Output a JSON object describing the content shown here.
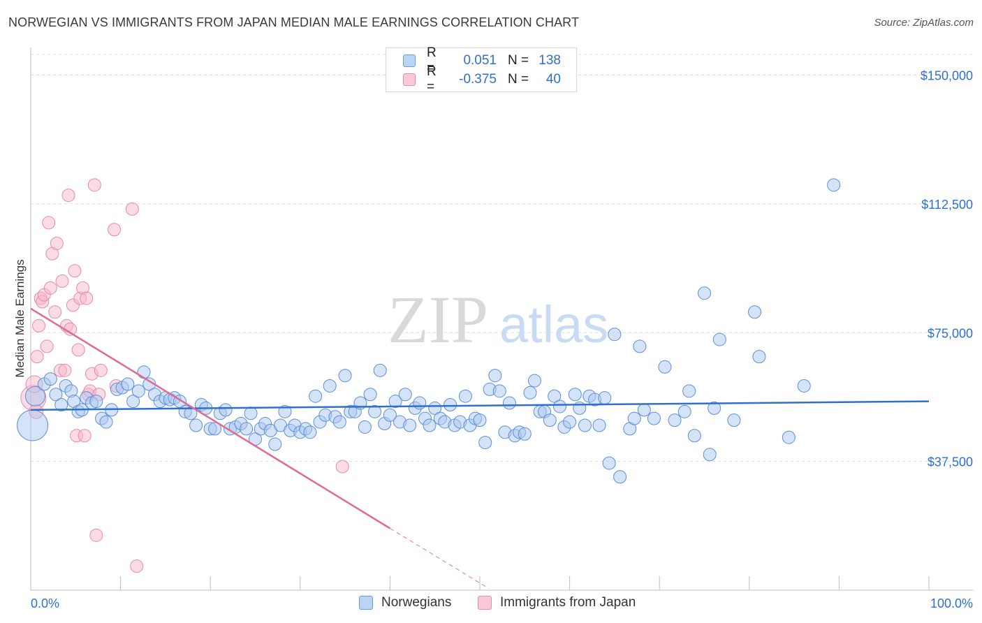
{
  "title": "NORWEGIAN VS IMMIGRANTS FROM JAPAN MEDIAN MALE EARNINGS CORRELATION CHART",
  "source": "Source: ZipAtlas.com",
  "watermark": {
    "zip": "ZIP",
    "atlas": "atlas"
  },
  "legend": {
    "rows": [
      {
        "r_label": "R =",
        "r_value": "0.051",
        "n_label": "N =",
        "n_value": "138",
        "color": "#a9c8f0",
        "border": "#6a9be0"
      },
      {
        "r_label": "R =",
        "r_value": "-0.375",
        "n_label": "N =",
        "n_value": "40",
        "color": "#f7b8cb",
        "border": "#e88aa8"
      }
    ]
  },
  "bottom_legend": {
    "series1": "Norwegians",
    "series2": "Immigrants from Japan"
  },
  "chart_data": {
    "type": "scatter",
    "ylabel": "Median Male Earnings",
    "x_tick_labels": [
      "0.0%",
      "100.0%"
    ],
    "xlim": [
      0,
      100
    ],
    "ylim": [
      0,
      156000
    ],
    "y_ticks": [
      37500,
      75000,
      112500,
      150000
    ],
    "y_tick_labels": [
      "$37,500",
      "$75,000",
      "$112,500",
      "$150,000"
    ],
    "grid": true,
    "colors": {
      "norwegians": "#5b8fd8",
      "japan": "#e5789b",
      "tick_label": "#2f6fd0"
    },
    "series": [
      {
        "name": "Norwegians",
        "trend": {
          "x0": 0,
          "y0": 52500,
          "x1": 100,
          "y1": 55000
        },
        "points": [
          [
            0.2,
            48000,
            22
          ],
          [
            0.5,
            56500,
            14
          ],
          [
            1.5,
            60000,
            9
          ],
          [
            2.2,
            61500,
            9
          ],
          [
            2.8,
            57000,
            9
          ],
          [
            3.4,
            54000,
            9
          ],
          [
            3.9,
            59500,
            9
          ],
          [
            4.5,
            58000,
            9
          ],
          [
            4.8,
            55000,
            9
          ],
          [
            5.3,
            52000,
            9
          ],
          [
            5.7,
            52500,
            9
          ],
          [
            6.2,
            56000,
            9
          ],
          [
            6.8,
            54500,
            9
          ],
          [
            7.3,
            55000,
            9
          ],
          [
            7.9,
            50000,
            9
          ],
          [
            8.4,
            49000,
            9
          ],
          [
            9.0,
            52500,
            9
          ],
          [
            9.6,
            58500,
            9
          ],
          [
            10.2,
            59000,
            9
          ],
          [
            10.8,
            60000,
            9
          ],
          [
            11.4,
            55000,
            9
          ],
          [
            12.0,
            58000,
            9
          ],
          [
            12.6,
            63500,
            9
          ],
          [
            13.2,
            60000,
            9
          ],
          [
            13.8,
            57000,
            9
          ],
          [
            14.4,
            55000,
            9
          ],
          [
            15.0,
            56000,
            9
          ],
          [
            15.5,
            55500,
            9
          ],
          [
            16.0,
            56000,
            9
          ],
          [
            16.6,
            55000,
            9
          ],
          [
            17.2,
            52000,
            9
          ],
          [
            17.8,
            51500,
            9
          ],
          [
            18.4,
            48000,
            9
          ],
          [
            19.0,
            54000,
            9
          ],
          [
            19.5,
            53000,
            9
          ],
          [
            20.0,
            47000,
            9
          ],
          [
            20.5,
            47000,
            9
          ],
          [
            21.1,
            51500,
            9
          ],
          [
            21.7,
            52500,
            9
          ],
          [
            22.2,
            47000,
            9
          ],
          [
            22.8,
            47500,
            9
          ],
          [
            23.4,
            48500,
            9
          ],
          [
            24.0,
            47000,
            9
          ],
          [
            24.5,
            51500,
            9
          ],
          [
            25.0,
            44000,
            9
          ],
          [
            25.6,
            47000,
            9
          ],
          [
            26.1,
            48500,
            9
          ],
          [
            26.7,
            46500,
            9
          ],
          [
            27.2,
            42500,
            9
          ],
          [
            27.8,
            48000,
            9
          ],
          [
            28.3,
            52000,
            9
          ],
          [
            28.9,
            46500,
            9
          ],
          [
            29.4,
            48000,
            9
          ],
          [
            30.0,
            46000,
            9
          ],
          [
            30.6,
            47000,
            9
          ],
          [
            31.1,
            46000,
            9
          ],
          [
            31.7,
            56500,
            9
          ],
          [
            32.2,
            49000,
            9
          ],
          [
            32.8,
            51000,
            9
          ],
          [
            33.3,
            59500,
            9
          ],
          [
            33.9,
            50500,
            9
          ],
          [
            34.4,
            49000,
            9
          ],
          [
            35.0,
            62500,
            9
          ],
          [
            35.6,
            52000,
            9
          ],
          [
            36.1,
            52000,
            9
          ],
          [
            36.7,
            54500,
            9
          ],
          [
            37.2,
            47500,
            9
          ],
          [
            37.8,
            57000,
            9
          ],
          [
            38.3,
            52000,
            9
          ],
          [
            38.9,
            64000,
            9
          ],
          [
            39.4,
            48500,
            9
          ],
          [
            40.0,
            51000,
            9
          ],
          [
            40.6,
            55000,
            9
          ],
          [
            41.1,
            49000,
            9
          ],
          [
            41.7,
            57000,
            9
          ],
          [
            42.2,
            48000,
            9
          ],
          [
            42.8,
            53000,
            9
          ],
          [
            43.3,
            54500,
            9
          ],
          [
            43.9,
            50000,
            9
          ],
          [
            44.4,
            48000,
            9
          ],
          [
            45.0,
            53000,
            9
          ],
          [
            45.6,
            50000,
            9
          ],
          [
            46.1,
            49000,
            9
          ],
          [
            46.7,
            54000,
            9
          ],
          [
            47.2,
            48000,
            9
          ],
          [
            47.8,
            49000,
            9
          ],
          [
            48.4,
            56500,
            9
          ],
          [
            48.9,
            48000,
            9
          ],
          [
            49.5,
            50000,
            9
          ],
          [
            50.0,
            49500,
            9
          ],
          [
            50.6,
            43000,
            9
          ],
          [
            51.1,
            58500,
            9
          ],
          [
            51.7,
            62500,
            9
          ],
          [
            52.2,
            58000,
            9
          ],
          [
            52.8,
            46000,
            9
          ],
          [
            53.3,
            54500,
            9
          ],
          [
            53.9,
            45000,
            9
          ],
          [
            54.4,
            46000,
            9
          ],
          [
            55.0,
            45500,
            9
          ],
          [
            55.6,
            57500,
            9
          ],
          [
            56.1,
            61000,
            9
          ],
          [
            56.7,
            52000,
            9
          ],
          [
            57.2,
            52000,
            9
          ],
          [
            57.8,
            49500,
            9
          ],
          [
            58.3,
            56500,
            9
          ],
          [
            58.9,
            53500,
            9
          ],
          [
            59.4,
            47500,
            9
          ],
          [
            60.0,
            49000,
            9
          ],
          [
            60.6,
            57000,
            9
          ],
          [
            61.1,
            53000,
            9
          ],
          [
            61.7,
            48000,
            9
          ],
          [
            62.2,
            56500,
            9
          ],
          [
            62.8,
            55500,
            9
          ],
          [
            63.3,
            48000,
            9
          ],
          [
            63.9,
            56000,
            9
          ],
          [
            64.4,
            37000,
            9
          ],
          [
            65.0,
            74500,
            9
          ],
          [
            65.6,
            33000,
            9
          ],
          [
            66.7,
            47000,
            9
          ],
          [
            67.2,
            50000,
            9
          ],
          [
            67.8,
            71000,
            9
          ],
          [
            68.3,
            52500,
            9
          ],
          [
            69.4,
            50000,
            9
          ],
          [
            70.6,
            65000,
            9
          ],
          [
            71.7,
            49500,
            9
          ],
          [
            72.8,
            52000,
            9
          ],
          [
            73.3,
            58000,
            9
          ],
          [
            73.9,
            45000,
            9
          ],
          [
            75.0,
            86500,
            9
          ],
          [
            75.6,
            39500,
            9
          ],
          [
            76.1,
            53000,
            9
          ],
          [
            76.7,
            73000,
            9
          ],
          [
            78.3,
            49500,
            9
          ],
          [
            80.6,
            81000,
            9
          ],
          [
            81.1,
            68000,
            9
          ],
          [
            84.4,
            44500,
            9
          ],
          [
            86.1,
            59500,
            9
          ],
          [
            89.4,
            118000,
            9
          ]
        ]
      },
      {
        "name": "Immigrants from Japan",
        "trend": {
          "x0": 0,
          "y0": 82000,
          "x1": 40,
          "y1": 18000,
          "dash_to_x": 51,
          "dash_to_y": 500
        },
        "points": [
          [
            0.3,
            56000,
            18
          ],
          [
            0.4,
            60000,
            12
          ],
          [
            0.6,
            52000,
            10
          ],
          [
            0.7,
            68000,
            9
          ],
          [
            0.9,
            77000,
            9
          ],
          [
            1.1,
            85000,
            9
          ],
          [
            1.3,
            84000,
            9
          ],
          [
            1.5,
            86000,
            9
          ],
          [
            1.8,
            71000,
            9
          ],
          [
            2.0,
            107000,
            9
          ],
          [
            2.2,
            88000,
            9
          ],
          [
            2.4,
            98000,
            9
          ],
          [
            2.7,
            81000,
            9
          ],
          [
            2.9,
            101000,
            9
          ],
          [
            3.3,
            64000,
            9
          ],
          [
            3.5,
            90000,
            9
          ],
          [
            3.8,
            64000,
            9
          ],
          [
            4.0,
            77000,
            9
          ],
          [
            4.2,
            115000,
            9
          ],
          [
            4.4,
            76000,
            9
          ],
          [
            4.7,
            83000,
            9
          ],
          [
            4.9,
            93000,
            9
          ],
          [
            5.1,
            45000,
            9
          ],
          [
            5.3,
            70000,
            9
          ],
          [
            5.5,
            85000,
            9
          ],
          [
            5.8,
            88000,
            9
          ],
          [
            6.0,
            45000,
            9
          ],
          [
            6.2,
            85000,
            9
          ],
          [
            6.4,
            57000,
            9
          ],
          [
            6.6,
            58000,
            9
          ],
          [
            6.8,
            63000,
            9
          ],
          [
            7.1,
            118000,
            9
          ],
          [
            7.3,
            16000,
            9
          ],
          [
            7.6,
            57000,
            9
          ],
          [
            7.8,
            64000,
            9
          ],
          [
            9.3,
            105000,
            9
          ],
          [
            9.5,
            59500,
            9
          ],
          [
            11.3,
            111000,
            9
          ],
          [
            11.8,
            7000,
            9
          ],
          [
            34.7,
            36000,
            9
          ]
        ]
      }
    ]
  }
}
